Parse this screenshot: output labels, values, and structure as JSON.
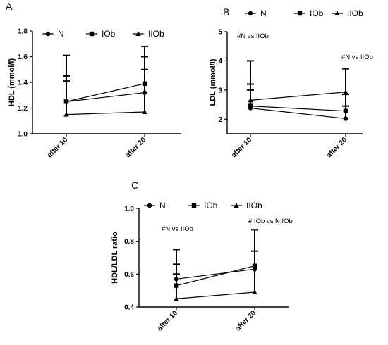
{
  "chart_data": [
    {
      "panel": "A",
      "type": "line",
      "ylabel": "HDL (mmol/l)",
      "categories": [
        "after 10",
        "after 20"
      ],
      "yticks": [
        "1.0",
        "1.2",
        "1.4",
        "1.6",
        "1.8"
      ],
      "ylim": [
        1.0,
        1.8
      ],
      "series": [
        {
          "name": "N",
          "marker": "circle",
          "values": [
            1.25,
            1.32
          ],
          "err_upper": [
            1.41,
            1.6
          ],
          "err_lower": [
            null,
            null
          ]
        },
        {
          "name": "IOb",
          "marker": "square",
          "values": [
            1.25,
            1.39
          ],
          "err_upper": [
            1.61,
            1.68
          ],
          "err_lower": [
            null,
            null
          ]
        },
        {
          "name": "IIOb",
          "marker": "triangle",
          "values": [
            1.15,
            1.17
          ],
          "err_upper": [
            1.45,
            1.5
          ],
          "err_lower": [
            null,
            null
          ]
        }
      ],
      "annotations": []
    },
    {
      "panel": "B",
      "type": "line",
      "ylabel": "LDL (mmol/l)",
      "categories": [
        "after 10",
        "after 20"
      ],
      "yticks": [
        "2",
        "3",
        "4",
        "5"
      ],
      "ylim": [
        1.5,
        5.0
      ],
      "series": [
        {
          "name": "N",
          "marker": "circle",
          "values": [
            2.38,
            2.02
          ],
          "err_upper": [
            3.0,
            2.45
          ],
          "err_lower": [
            null,
            null
          ]
        },
        {
          "name": "IOb",
          "marker": "square",
          "values": [
            2.45,
            2.28
          ],
          "err_upper": [
            3.2,
            2.85
          ],
          "err_lower": [
            null,
            null
          ]
        },
        {
          "name": "IIOb",
          "marker": "triangle",
          "values": [
            2.65,
            2.93
          ],
          "err_upper": [
            4.0,
            3.73
          ],
          "err_lower": [
            null,
            null
          ]
        }
      ],
      "annotations": [
        "#N vs IIOb",
        "#N vs IIOb"
      ]
    },
    {
      "panel": "C",
      "type": "line",
      "ylabel": "HDL/LDL ratio",
      "categories": [
        "after 10",
        "after 20"
      ],
      "yticks": [
        "0.4",
        "0.6",
        "0.8",
        "1.0"
      ],
      "ylim": [
        0.4,
        1.0
      ],
      "series": [
        {
          "name": "N",
          "marker": "circle",
          "values": [
            0.57,
            0.63
          ],
          "err_upper": [
            0.66,
            0.74
          ],
          "err_lower": [
            null,
            null
          ]
        },
        {
          "name": "IOb",
          "marker": "square",
          "values": [
            0.53,
            0.65
          ],
          "err_upper": [
            0.6,
            0.87
          ],
          "err_lower": [
            null,
            null
          ]
        },
        {
          "name": "IIOb",
          "marker": "triangle",
          "values": [
            0.45,
            0.49
          ],
          "err_upper": [
            0.75,
            0.87
          ],
          "err_lower": [
            null,
            null
          ]
        }
      ],
      "annotations": [
        "#N vs IIOb",
        "#IIOb vs N,IOb"
      ]
    }
  ]
}
